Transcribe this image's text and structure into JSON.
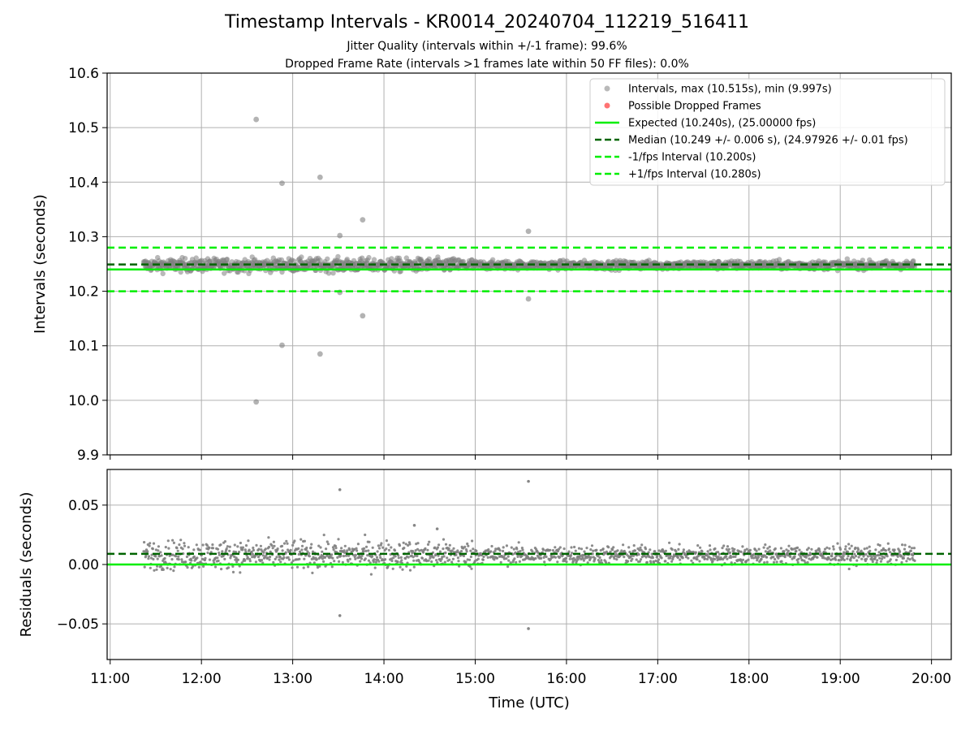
{
  "title": "Timestamp Intervals - KR0014_20240704_112219_516411",
  "subtitle_lines": [
    "Jitter Quality (intervals within +/-1 frame): 99.6%",
    "Dropped Frame Rate (intervals >1 frames late within 50 FF files): 0.0%"
  ],
  "colors": {
    "points": "#808080",
    "dropped": "#ff0000",
    "expected": "#00ee00",
    "median": "#006400",
    "fps_interval": "#00ee00",
    "grid": "#b0b0b0"
  },
  "chart_data": [
    {
      "type": "scatter",
      "panel": "top",
      "ylabel": "Intervals (seconds)",
      "xlabel": "",
      "ylim": [
        9.9,
        10.6
      ],
      "yticks": [
        "9.9",
        "10.0",
        "10.1",
        "10.2",
        "10.3",
        "10.4",
        "10.5",
        "10.6"
      ],
      "xlim": [
        "10:58",
        "20:13"
      ],
      "xticks": [
        "11:00",
        "12:00",
        "13:00",
        "14:00",
        "15:00",
        "16:00",
        "17:00",
        "18:00",
        "19:00",
        "20:00"
      ],
      "grid": true,
      "legend_placement": "top-right",
      "series": [
        {
          "name": "Intervals, max (10.515s), min (9.997s)",
          "kind": "points",
          "color": "#808080",
          "band": {
            "x_start": "11:22",
            "x_end": "19:49",
            "center": 10.248,
            "spread": 0.012
          },
          "outliers": [
            {
              "x": "12:36",
              "y": 10.515
            },
            {
              "x": "12:53",
              "y": 10.398
            },
            {
              "x": "13:18",
              "y": 10.409
            },
            {
              "x": "13:46",
              "y": 10.331
            },
            {
              "x": "13:31",
              "y": 10.302
            },
            {
              "x": "15:35",
              "y": 10.31
            },
            {
              "x": "13:31",
              "y": 10.198
            },
            {
              "x": "13:46",
              "y": 10.155
            },
            {
              "x": "15:35",
              "y": 10.186
            },
            {
              "x": "12:53",
              "y": 10.101
            },
            {
              "x": "13:18",
              "y": 10.085
            },
            {
              "x": "12:36",
              "y": 9.997
            }
          ]
        },
        {
          "name": "Possible Dropped Frames",
          "kind": "points",
          "color": "#ff0000",
          "points": []
        },
        {
          "name": "Expected (10.240s), (25.00000 fps)",
          "kind": "hline",
          "value": 10.24,
          "style": "solid",
          "color": "#00ee00"
        },
        {
          "name": "Median (10.249 +/- 0.006 s), (24.97926 +/- 0.01 fps)",
          "kind": "hline",
          "value": 10.249,
          "style": "dashed",
          "color": "#006400"
        },
        {
          "name": "-1/fps Interval (10.200s)",
          "kind": "hline",
          "value": 10.2,
          "style": "dashed",
          "color": "#00ee00"
        },
        {
          "name": "+1/fps Interval (10.280s)",
          "kind": "hline",
          "value": 10.28,
          "style": "dashed",
          "color": "#00ee00"
        }
      ]
    },
    {
      "type": "scatter",
      "panel": "bottom",
      "ylabel": "Residuals (seconds)",
      "xlabel": "Time (UTC)",
      "ylim": [
        -0.08,
        0.08
      ],
      "yticks": [
        "−0.05",
        "0.00",
        "0.05"
      ],
      "ytick_values": [
        -0.05,
        0.0,
        0.05
      ],
      "xlim": [
        "10:58",
        "20:13"
      ],
      "xticks": [
        "11:00",
        "12:00",
        "13:00",
        "14:00",
        "15:00",
        "16:00",
        "17:00",
        "18:00",
        "19:00",
        "20:00"
      ],
      "grid": true,
      "series": [
        {
          "name": "Residuals",
          "kind": "points",
          "color": "#808080",
          "band": {
            "x_start": "11:22",
            "x_end": "19:49",
            "center": 0.008,
            "spread": 0.012
          },
          "outliers": [
            {
              "x": "13:31",
              "y": 0.063
            },
            {
              "x": "15:35",
              "y": 0.07
            },
            {
              "x": "13:31",
              "y": -0.043
            },
            {
              "x": "15:35",
              "y": -0.054
            },
            {
              "x": "14:20",
              "y": 0.033
            },
            {
              "x": "14:35",
              "y": 0.03
            }
          ]
        },
        {
          "name": "Expected",
          "kind": "hline",
          "value": 0.0,
          "style": "solid",
          "color": "#00ee00"
        },
        {
          "name": "Median",
          "kind": "hline",
          "value": 0.009,
          "style": "dashed",
          "color": "#006400"
        }
      ]
    }
  ]
}
